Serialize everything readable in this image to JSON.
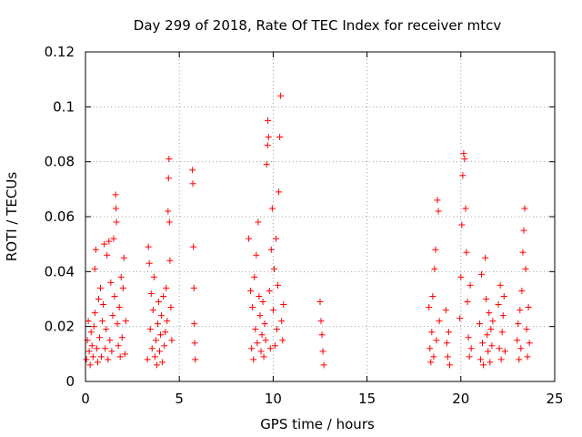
{
  "chart_data": {
    "type": "scatter",
    "title": "Day 299 of 2018, Rate Of TEC Index for receiver mtcv",
    "xlabel": "GPS time / hours",
    "ylabel": "ROTI / TECUs",
    "xlim": [
      0,
      25
    ],
    "ylim": [
      0,
      0.12
    ],
    "grid": true,
    "marker": "plus",
    "color": "#ff0000",
    "xticks": [
      0,
      5,
      10,
      15,
      20,
      25
    ],
    "xtick_labels": [
      "0",
      "5",
      "10",
      "15",
      "20",
      "25"
    ],
    "yticks": [
      0,
      0.02,
      0.04,
      0.06,
      0.08,
      0.1,
      0.12
    ],
    "ytick_labels": [
      "0",
      "0.02",
      "0.04",
      "0.06",
      "0.08",
      "0.1",
      "0.12"
    ],
    "series": [
      {
        "name": "ROTI",
        "points": [
          [
            0.05,
            0.008
          ],
          [
            0.1,
            0.015
          ],
          [
            0.15,
            0.022
          ],
          [
            0.2,
            0.011
          ],
          [
            0.25,
            0.006
          ],
          [
            0.3,
            0.018
          ],
          [
            0.35,
            0.013
          ],
          [
            0.4,
            0.009
          ],
          [
            0.45,
            0.02
          ],
          [
            0.5,
            0.025
          ],
          [
            0.5,
            0.041
          ],
          [
            0.55,
            0.048
          ],
          [
            0.6,
            0.012
          ],
          [
            0.65,
            0.007
          ],
          [
            0.7,
            0.03
          ],
          [
            0.75,
            0.016
          ],
          [
            0.8,
            0.034
          ],
          [
            0.85,
            0.009
          ],
          [
            0.9,
            0.022
          ],
          [
            0.95,
            0.028
          ],
          [
            1.0,
            0.05
          ],
          [
            1.05,
            0.012
          ],
          [
            1.1,
            0.019
          ],
          [
            1.15,
            0.046
          ],
          [
            1.2,
            0.008
          ],
          [
            1.25,
            0.051
          ],
          [
            1.3,
            0.015
          ],
          [
            1.35,
            0.036
          ],
          [
            1.4,
            0.011
          ],
          [
            1.45,
            0.024
          ],
          [
            1.5,
            0.052
          ],
          [
            1.55,
            0.031
          ],
          [
            1.6,
            0.068
          ],
          [
            1.62,
            0.063
          ],
          [
            1.65,
            0.058
          ],
          [
            1.7,
            0.021
          ],
          [
            1.75,
            0.013
          ],
          [
            1.8,
            0.027
          ],
          [
            1.85,
            0.009
          ],
          [
            1.9,
            0.038
          ],
          [
            1.95,
            0.016
          ],
          [
            2.0,
            0.034
          ],
          [
            2.05,
            0.045
          ],
          [
            2.1,
            0.01
          ],
          [
            2.15,
            0.022
          ],
          [
            3.3,
            0.008
          ],
          [
            3.35,
            0.049
          ],
          [
            3.4,
            0.043
          ],
          [
            3.45,
            0.019
          ],
          [
            3.5,
            0.032
          ],
          [
            3.55,
            0.012
          ],
          [
            3.6,
            0.026
          ],
          [
            3.65,
            0.038
          ],
          [
            3.7,
            0.009
          ],
          [
            3.75,
            0.015
          ],
          [
            3.8,
            0.006
          ],
          [
            3.85,
            0.021
          ],
          [
            3.9,
            0.029
          ],
          [
            3.95,
            0.011
          ],
          [
            4.0,
            0.017
          ],
          [
            4.05,
            0.024
          ],
          [
            4.1,
            0.007
          ],
          [
            4.15,
            0.031
          ],
          [
            4.2,
            0.013
          ],
          [
            4.25,
            0.018
          ],
          [
            4.3,
            0.034
          ],
          [
            4.35,
            0.022
          ],
          [
            4.4,
            0.062
          ],
          [
            4.42,
            0.074
          ],
          [
            4.45,
            0.081
          ],
          [
            4.47,
            0.058
          ],
          [
            4.5,
            0.044
          ],
          [
            4.55,
            0.027
          ],
          [
            4.6,
            0.015
          ],
          [
            5.7,
            0.077
          ],
          [
            5.72,
            0.072
          ],
          [
            5.75,
            0.049
          ],
          [
            5.78,
            0.034
          ],
          [
            5.8,
            0.021
          ],
          [
            5.82,
            0.014
          ],
          [
            5.85,
            0.008
          ],
          [
            8.7,
            0.052
          ],
          [
            8.8,
            0.033
          ],
          [
            8.85,
            0.012
          ],
          [
            8.9,
            0.027
          ],
          [
            8.95,
            0.008
          ],
          [
            9.0,
            0.038
          ],
          [
            9.05,
            0.019
          ],
          [
            9.1,
            0.046
          ],
          [
            9.15,
            0.014
          ],
          [
            9.2,
            0.058
          ],
          [
            9.25,
            0.031
          ],
          [
            9.3,
            0.024
          ],
          [
            9.35,
            0.011
          ],
          [
            9.4,
            0.017
          ],
          [
            9.45,
            0.029
          ],
          [
            9.5,
            0.009
          ],
          [
            9.55,
            0.021
          ],
          [
            9.6,
            0.015
          ],
          [
            9.65,
            0.079
          ],
          [
            9.7,
            0.086
          ],
          [
            9.72,
            0.095
          ],
          [
            9.75,
            0.089
          ],
          [
            9.8,
            0.033
          ],
          [
            9.85,
            0.012
          ],
          [
            9.9,
            0.048
          ],
          [
            9.95,
            0.063
          ],
          [
            10.0,
            0.026
          ],
          [
            10.05,
            0.041
          ],
          [
            10.1,
            0.013
          ],
          [
            10.15,
            0.052
          ],
          [
            10.2,
            0.019
          ],
          [
            10.25,
            0.035
          ],
          [
            10.3,
            0.069
          ],
          [
            10.35,
            0.089
          ],
          [
            10.4,
            0.104
          ],
          [
            10.45,
            0.022
          ],
          [
            10.5,
            0.015
          ],
          [
            10.55,
            0.028
          ],
          [
            12.5,
            0.029
          ],
          [
            12.55,
            0.022
          ],
          [
            12.6,
            0.017
          ],
          [
            12.65,
            0.011
          ],
          [
            12.7,
            0.006
          ],
          [
            18.3,
            0.027
          ],
          [
            18.35,
            0.012
          ],
          [
            18.4,
            0.007
          ],
          [
            18.45,
            0.018
          ],
          [
            18.5,
            0.031
          ],
          [
            18.55,
            0.009
          ],
          [
            18.6,
            0.041
          ],
          [
            18.65,
            0.048
          ],
          [
            18.7,
            0.015
          ],
          [
            18.75,
            0.066
          ],
          [
            18.8,
            0.062
          ],
          [
            18.85,
            0.022
          ],
          [
            19.2,
            0.026
          ],
          [
            19.25,
            0.014
          ],
          [
            19.3,
            0.009
          ],
          [
            19.35,
            0.018
          ],
          [
            19.4,
            0.006
          ],
          [
            19.95,
            0.023
          ],
          [
            20.0,
            0.038
          ],
          [
            20.05,
            0.057
          ],
          [
            20.1,
            0.075
          ],
          [
            20.15,
            0.083
          ],
          [
            20.2,
            0.081
          ],
          [
            20.25,
            0.063
          ],
          [
            20.3,
            0.047
          ],
          [
            20.35,
            0.029
          ],
          [
            20.4,
            0.016
          ],
          [
            20.45,
            0.009
          ],
          [
            20.5,
            0.035
          ],
          [
            20.55,
            0.012
          ],
          [
            21.0,
            0.021
          ],
          [
            21.05,
            0.008
          ],
          [
            21.1,
            0.039
          ],
          [
            21.15,
            0.014
          ],
          [
            21.2,
            0.006
          ],
          [
            21.3,
            0.045
          ],
          [
            21.35,
            0.03
          ],
          [
            21.4,
            0.017
          ],
          [
            21.45,
            0.011
          ],
          [
            21.5,
            0.025
          ],
          [
            21.55,
            0.007
          ],
          [
            21.6,
            0.019
          ],
          [
            21.65,
            0.013
          ],
          [
            21.7,
            0.022
          ],
          [
            22.0,
            0.028
          ],
          [
            22.05,
            0.012
          ],
          [
            22.1,
            0.035
          ],
          [
            22.15,
            0.008
          ],
          [
            22.2,
            0.018
          ],
          [
            22.25,
            0.024
          ],
          [
            22.3,
            0.031
          ],
          [
            22.35,
            0.011
          ],
          [
            23.0,
            0.015
          ],
          [
            23.05,
            0.021
          ],
          [
            23.1,
            0.008
          ],
          [
            23.15,
            0.026
          ],
          [
            23.2,
            0.012
          ],
          [
            23.25,
            0.033
          ],
          [
            23.3,
            0.047
          ],
          [
            23.35,
            0.055
          ],
          [
            23.4,
            0.063
          ],
          [
            23.45,
            0.041
          ],
          [
            23.5,
            0.019
          ],
          [
            23.55,
            0.009
          ],
          [
            23.6,
            0.027
          ],
          [
            23.65,
            0.014
          ]
        ]
      }
    ]
  }
}
